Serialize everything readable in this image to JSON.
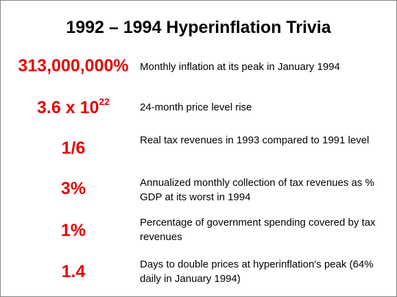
{
  "title": "1992 – 1994 Hyperinflation Trivia",
  "facts": [
    {
      "stat": "313,000,000%",
      "desc": "Monthly inflation at its peak in January 1994"
    },
    {
      "stat_base": "3.6 x 10",
      "stat_exp": "22",
      "desc": "24-month price level rise"
    },
    {
      "stat": "1/6",
      "desc": "Real tax revenues in 1993 compared to 1991 level"
    },
    {
      "stat": "3%",
      "desc": "Annualized monthly collection of tax revenues as % GDP at its worst in 1994"
    },
    {
      "stat": "1%",
      "desc": "Percentage of government spending covered by tax revenues"
    },
    {
      "stat": "1.4",
      "desc": "Days to double prices at hyperinflation's peak (64% daily in January 1994)"
    }
  ]
}
